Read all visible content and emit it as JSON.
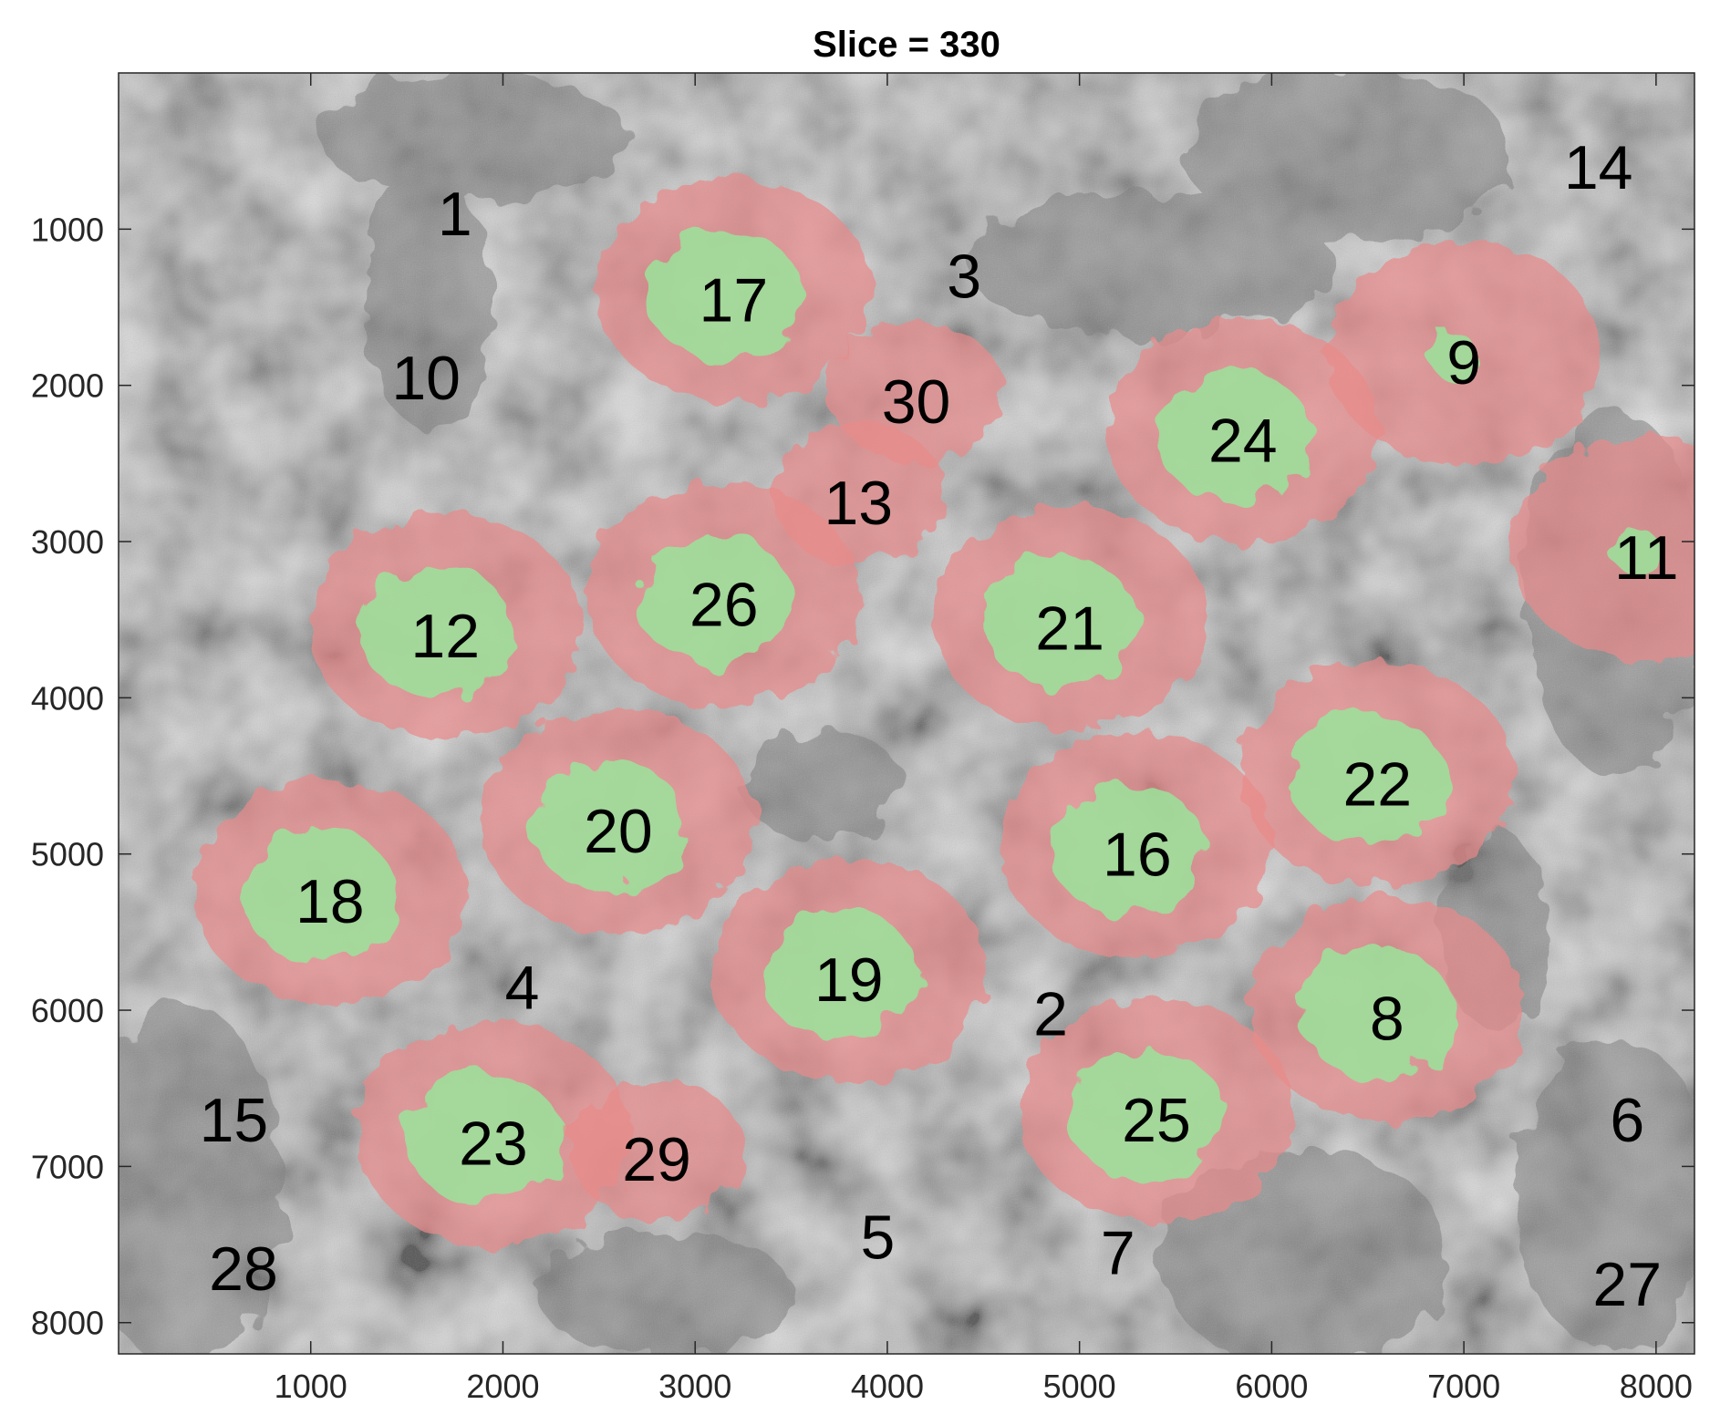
{
  "title": "Slice = 330",
  "x_axis": {
    "ticks": [
      1000,
      2000,
      3000,
      4000,
      5000,
      6000,
      7000,
      8000
    ],
    "range": [
      0,
      8200
    ]
  },
  "y_axis": {
    "ticks": [
      1000,
      2000,
      3000,
      4000,
      5000,
      6000,
      7000,
      8000
    ],
    "range": [
      0,
      8200
    ],
    "direction": "top-down"
  },
  "colors": {
    "cytoplasm_overlay": "#e88a8a",
    "nucleus_overlay": "#9be39b",
    "background_grey": "#b9b9b9"
  },
  "cells": [
    {
      "id": "1",
      "x": 1750,
      "y": 900,
      "cytoplasm": false,
      "nucleus": false
    },
    {
      "id": "2",
      "x": 4850,
      "y": 6020,
      "cytoplasm": false,
      "nucleus": false
    },
    {
      "id": "3",
      "x": 4400,
      "y": 1300,
      "cytoplasm": false,
      "nucleus": false
    },
    {
      "id": "4",
      "x": 2100,
      "y": 5850,
      "cytoplasm": false,
      "nucleus": false
    },
    {
      "id": "5",
      "x": 3950,
      "y": 7450,
      "cytoplasm": false,
      "nucleus": false
    },
    {
      "id": "6",
      "x": 7850,
      "y": 6700,
      "cytoplasm": false,
      "nucleus": false
    },
    {
      "id": "7",
      "x": 5200,
      "y": 7550,
      "cytoplasm": false,
      "nucleus": false
    },
    {
      "id": "8",
      "x": 6600,
      "y": 6050,
      "cytoplasm": true,
      "nucleus": true
    },
    {
      "id": "9",
      "x": 7000,
      "y": 1850,
      "cytoplasm": true,
      "nucleus": true
    },
    {
      "id": "10",
      "x": 1600,
      "y": 1950,
      "cytoplasm": false,
      "nucleus": false
    },
    {
      "id": "11",
      "x": 7950,
      "y": 3100,
      "cytoplasm": true,
      "nucleus": true
    },
    {
      "id": "12",
      "x": 1700,
      "y": 3600,
      "cytoplasm": true,
      "nucleus": true
    },
    {
      "id": "13",
      "x": 3850,
      "y": 2750,
      "cytoplasm": true,
      "nucleus": false
    },
    {
      "id": "14",
      "x": 7700,
      "y": 600,
      "cytoplasm": false,
      "nucleus": false
    },
    {
      "id": "15",
      "x": 600,
      "y": 6700,
      "cytoplasm": false,
      "nucleus": false
    },
    {
      "id": "16",
      "x": 5300,
      "y": 5000,
      "cytoplasm": true,
      "nucleus": true
    },
    {
      "id": "17",
      "x": 3200,
      "y": 1450,
      "cytoplasm": true,
      "nucleus": true
    },
    {
      "id": "18",
      "x": 1100,
      "y": 5300,
      "cytoplasm": true,
      "nucleus": true
    },
    {
      "id": "19",
      "x": 3800,
      "y": 5800,
      "cytoplasm": true,
      "nucleus": true
    },
    {
      "id": "20",
      "x": 2600,
      "y": 4850,
      "cytoplasm": true,
      "nucleus": true
    },
    {
      "id": "21",
      "x": 4950,
      "y": 3550,
      "cytoplasm": true,
      "nucleus": true
    },
    {
      "id": "22",
      "x": 6550,
      "y": 4550,
      "cytoplasm": true,
      "nucleus": true
    },
    {
      "id": "23",
      "x": 1950,
      "y": 6850,
      "cytoplasm": true,
      "nucleus": true
    },
    {
      "id": "24",
      "x": 5850,
      "y": 2350,
      "cytoplasm": true,
      "nucleus": true
    },
    {
      "id": "25",
      "x": 5400,
      "y": 6700,
      "cytoplasm": true,
      "nucleus": true
    },
    {
      "id": "26",
      "x": 3150,
      "y": 3400,
      "cytoplasm": true,
      "nucleus": true
    },
    {
      "id": "27",
      "x": 7850,
      "y": 7750,
      "cytoplasm": false,
      "nucleus": false
    },
    {
      "id": "28",
      "x": 650,
      "y": 7650,
      "cytoplasm": false,
      "nucleus": false
    },
    {
      "id": "29",
      "x": 2800,
      "y": 6950,
      "cytoplasm": true,
      "nucleus": false
    },
    {
      "id": "30",
      "x": 4150,
      "y": 2100,
      "cytoplasm": true,
      "nucleus": false
    }
  ]
}
